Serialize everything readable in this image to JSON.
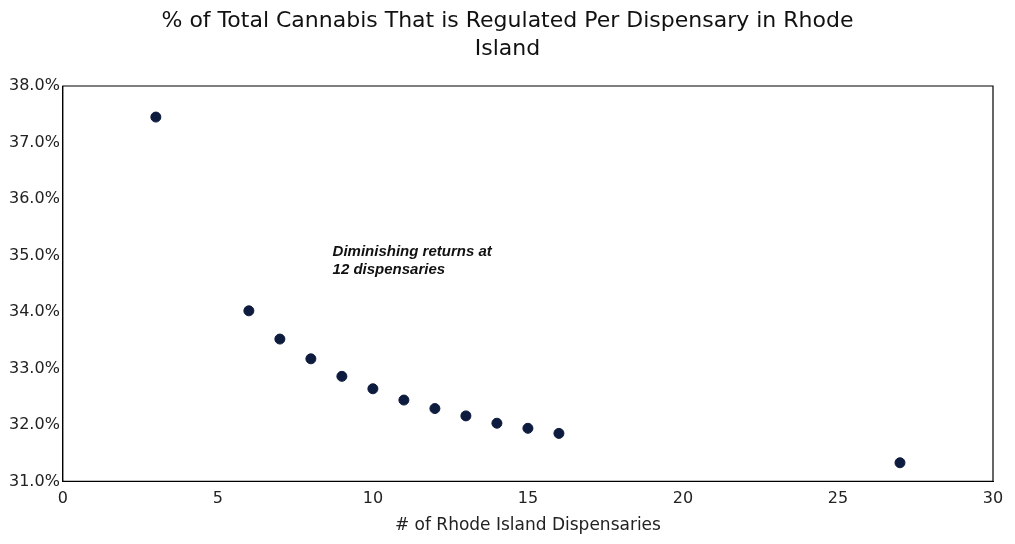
{
  "chart_data": {
    "type": "scatter",
    "title": "% of Total Cannabis That is Regulated Per Dispensary in Rhode Island",
    "xlabel": "# of Rhode Island Dispensaries",
    "x": [
      3,
      6,
      7,
      8,
      9,
      10,
      11,
      12,
      13,
      14,
      15,
      16,
      27
    ],
    "values": [
      37.45,
      34.02,
      33.52,
      33.17,
      32.86,
      32.64,
      32.44,
      32.29,
      32.16,
      32.03,
      31.94,
      31.85,
      31.33
    ],
    "color": "#0d1b3e",
    "marker": "circle",
    "grid": false,
    "legend": false,
    "xlim": [
      0,
      30
    ],
    "xticks": [
      0,
      5,
      10,
      15,
      20,
      25,
      30
    ],
    "ylim": [
      31,
      38
    ],
    "yticks": [
      {
        "value": 31,
        "label": "31.0%"
      },
      {
        "value": 32,
        "label": "32.0%"
      },
      {
        "value": 33,
        "label": "33.0%"
      },
      {
        "value": 34,
        "label": "34.0%"
      },
      {
        "value": 35,
        "label": "35.0%"
      },
      {
        "value": 36,
        "label": "36.0%"
      },
      {
        "value": 37,
        "label": "37.0%"
      },
      {
        "value": 38,
        "label": "38.0%"
      }
    ],
    "annotations": [
      "Diminishing returns at 12 dispensaries"
    ]
  }
}
